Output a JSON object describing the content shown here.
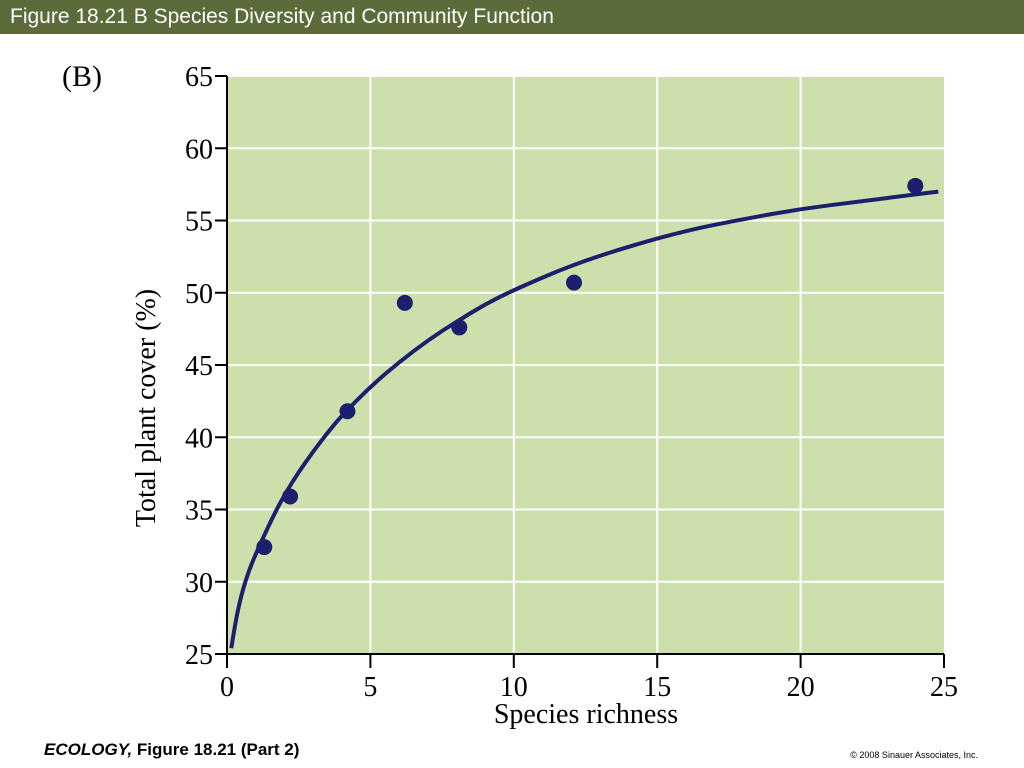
{
  "header": {
    "title": "Figure 18.21 B  Species Diversity and Community Function"
  },
  "chart_data": {
    "type": "scatter",
    "panel_label": "(B)",
    "xlabel": "Species richness",
    "ylabel": "Total plant cover (%)",
    "xlim": [
      0,
      25
    ],
    "ylim": [
      25,
      65
    ],
    "x_ticks": [
      "0",
      "5",
      "10",
      "15",
      "20",
      "25"
    ],
    "y_ticks": [
      "25",
      "30",
      "35",
      "40",
      "45",
      "50",
      "55",
      "60",
      "65"
    ],
    "grid": true,
    "points": [
      {
        "x": 1.3,
        "y": 32.4
      },
      {
        "x": 2.2,
        "y": 35.9
      },
      {
        "x": 4.2,
        "y": 41.8
      },
      {
        "x": 6.2,
        "y": 49.3
      },
      {
        "x": 8.1,
        "y": 47.6
      },
      {
        "x": 12.1,
        "y": 50.7
      },
      {
        "x": 24.0,
        "y": 57.4
      }
    ],
    "fit_curve": {
      "x": [
        0.15,
        0.3,
        0.5,
        0.8,
        1.2,
        1.6,
        2.0,
        2.5,
        3.0,
        3.5,
        4.0,
        5.0,
        6.0,
        7.0,
        8.0,
        9.0,
        10.0,
        12.0,
        14.0,
        16.0,
        18.0,
        20.0,
        22.0,
        24.0,
        24.8
      ],
      "y": [
        25.4,
        27.3,
        29.1,
        31.0,
        32.8,
        34.5,
        36.0,
        37.6,
        39.0,
        40.3,
        41.5,
        43.5,
        45.2,
        46.7,
        48.0,
        49.2,
        50.2,
        51.9,
        53.2,
        54.3,
        55.1,
        55.8,
        56.3,
        56.8,
        57.0
      ]
    },
    "colors": {
      "plot_background": "#cde0ab",
      "gridline": "#ffffff",
      "marker": "#1c1f6e",
      "curve": "#1c1f6e",
      "axis": "#000000"
    }
  },
  "footer": {
    "book": "ECOLOGY,",
    "figure_ref": " Figure 18.21 (Part 2)",
    "copyright": "© 2008 Sinauer Associates, Inc."
  }
}
